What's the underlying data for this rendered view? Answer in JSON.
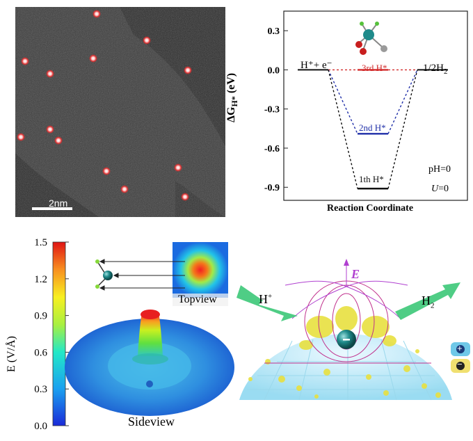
{
  "stem": {
    "scale_bar_label": "2nm"
  },
  "energy_diagram": {
    "y_axis_label_main": "ΔG",
    "y_axis_label_sub": "H*",
    "y_axis_label_unit": " (eV)",
    "x_axis_label": "Reaction Coordinate",
    "y_ticks": [
      "0.3",
      "0.0",
      "-0.3",
      "-0.6",
      "-0.9"
    ],
    "left_state_label": "H⁺+ e⁻",
    "right_state_label": "1/2H",
    "right_state_sub": "2",
    "level_labels": [
      "3rd H*",
      "2nd H*",
      "1th H*"
    ],
    "condition_ph": "pH=0",
    "condition_u_var": "U",
    "condition_u_val": "=0",
    "colors": {
      "third": "#d22b2b",
      "second": "#1e2ea8",
      "first": "#111111"
    }
  },
  "chart_data": {
    "type": "line",
    "xlabel": "Reaction Coordinate",
    "ylabel": "ΔGH* (eV)",
    "ylim": [
      -1.0,
      0.45
    ],
    "series": [
      {
        "name": "3rd H*",
        "values": [
          0.0,
          0.0,
          0.0
        ]
      },
      {
        "name": "2nd H*",
        "values": [
          0.0,
          -0.49,
          0.0
        ]
      },
      {
        "name": "1th H*",
        "values": [
          0.0,
          -0.91,
          0.0
        ]
      }
    ]
  },
  "efield": {
    "axis_label": "E (V/Å)",
    "ticks": [
      "1.5",
      "1.2",
      "0.9",
      "0.6",
      "0.3",
      "0.0"
    ],
    "topview_label": "Topview",
    "sideview_label": "Sideview"
  },
  "schematic": {
    "field_label": "E",
    "proton_label": "H",
    "proton_sup": "+",
    "h2_label": "H",
    "h2_sub": "2",
    "plus_symbol": "+",
    "minus_symbol": "−"
  }
}
